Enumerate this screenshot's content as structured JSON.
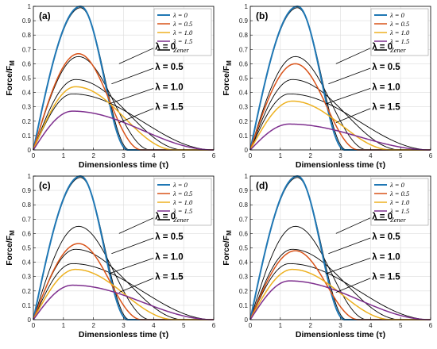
{
  "figure": {
    "xlabel": "Dimensionless time (τ)",
    "ylabel": "Force/F",
    "ylabel_sub": "M",
    "xlim": [
      0,
      6
    ],
    "ylim": [
      0,
      1
    ],
    "xticks": [
      "0",
      "1",
      "2",
      "3",
      "4",
      "5",
      "6"
    ],
    "yticks": [
      "0",
      "0.1",
      "0.2",
      "0.3",
      "0.4",
      "0.5",
      "0.6",
      "0.7",
      "0.8",
      "0.9",
      "1"
    ],
    "grid": true,
    "legend_position": "top-right"
  },
  "colors": {
    "lambda_0": "#1f77b4",
    "lambda_0_5": "#d95319",
    "lambda_1_0": "#edb120",
    "lambda_1_5": "#7e2f8e",
    "zener": "#000000"
  },
  "chart_data": [
    {
      "type": "line",
      "panel_label": "(a)",
      "xlabel": "Dimensionless time (τ)",
      "ylabel": "Force/FM",
      "xlim": [
        0,
        6
      ],
      "ylim": [
        0,
        1
      ],
      "legend": [
        "λ = 0",
        "λ = 0.5",
        "λ = 1.0",
        "λ = 1.5",
        "Zener"
      ],
      "annotations": [
        "λ = 0",
        "λ = 0.5",
        "λ = 1.0",
        "λ = 1.5"
      ],
      "series": [
        {
          "name": "λ = 0",
          "peak": 1.0,
          "peak_x": 1.57,
          "end_x": 3.14
        },
        {
          "name": "λ = 0.5",
          "peak": 0.67,
          "peak_x": 1.5,
          "end_x": 3.6
        },
        {
          "name": "λ = 1.0",
          "peak": 0.44,
          "peak_x": 1.4,
          "end_x": 4.7
        },
        {
          "name": "λ = 1.5",
          "peak": 0.27,
          "peak_x": 1.3,
          "end_x": 6.0
        },
        {
          "name": "Zener",
          "curves": [
            {
              "peak": 0.99,
              "peak_x": 1.57,
              "end_x": 3.2
            },
            {
              "peak": 0.65,
              "peak_x": 1.5,
              "end_x": 3.9
            },
            {
              "peak": 0.49,
              "peak_x": 1.4,
              "end_x": 5.0
            },
            {
              "peak": 0.39,
              "peak_x": 1.3,
              "end_x": 6.0
            }
          ]
        }
      ]
    },
    {
      "type": "line",
      "panel_label": "(b)",
      "xlabel": "Dimensionless time (τ)",
      "ylabel": "Force/FM",
      "xlim": [
        0,
        6
      ],
      "ylim": [
        0,
        1
      ],
      "legend": [
        "λ = 0",
        "λ = 0.5",
        "λ = 1.0",
        "λ = 1.5",
        "Zener"
      ],
      "annotations": [
        "λ = 0",
        "λ = 0.5",
        "λ = 1.0",
        "λ = 1.5"
      ],
      "series": [
        {
          "name": "λ = 0",
          "peak": 1.0,
          "peak_x": 1.57,
          "end_x": 3.14
        },
        {
          "name": "λ = 0.5",
          "peak": 0.6,
          "peak_x": 1.5,
          "end_x": 3.6
        },
        {
          "name": "λ = 1.0",
          "peak": 0.34,
          "peak_x": 1.4,
          "end_x": 4.7
        },
        {
          "name": "λ = 1.5",
          "peak": 0.18,
          "peak_x": 1.3,
          "end_x": 6.0
        },
        {
          "name": "Zener",
          "curves": [
            {
              "peak": 0.99,
              "peak_x": 1.57,
              "end_x": 3.2
            },
            {
              "peak": 0.65,
              "peak_x": 1.5,
              "end_x": 3.9
            },
            {
              "peak": 0.49,
              "peak_x": 1.4,
              "end_x": 5.0
            },
            {
              "peak": 0.39,
              "peak_x": 1.3,
              "end_x": 6.0
            }
          ]
        }
      ]
    },
    {
      "type": "line",
      "panel_label": "(c)",
      "xlabel": "Dimensionless time (τ)",
      "ylabel": "Force/FM",
      "xlim": [
        0,
        6
      ],
      "ylim": [
        0,
        1
      ],
      "legend": [
        "λ = 0",
        "λ = 0.5",
        "λ = 1.0",
        "λ = 1.5",
        "Zener"
      ],
      "annotations": [
        "λ = 0",
        "λ = 0.5",
        "λ = 1.0",
        "λ = 1.5"
      ],
      "series": [
        {
          "name": "λ = 0",
          "peak": 1.0,
          "peak_x": 1.57,
          "end_x": 3.14
        },
        {
          "name": "λ = 0.5",
          "peak": 0.53,
          "peak_x": 1.5,
          "end_x": 3.6
        },
        {
          "name": "λ = 1.0",
          "peak": 0.35,
          "peak_x": 1.4,
          "end_x": 4.7
        },
        {
          "name": "λ = 1.5",
          "peak": 0.24,
          "peak_x": 1.3,
          "end_x": 6.0
        },
        {
          "name": "Zener",
          "curves": [
            {
              "peak": 0.99,
              "peak_x": 1.57,
              "end_x": 3.2
            },
            {
              "peak": 0.65,
              "peak_x": 1.5,
              "end_x": 3.9
            },
            {
              "peak": 0.49,
              "peak_x": 1.4,
              "end_x": 5.0
            },
            {
              "peak": 0.39,
              "peak_x": 1.3,
              "end_x": 6.0
            }
          ]
        }
      ]
    },
    {
      "type": "line",
      "panel_label": "(d)",
      "xlabel": "Dimensionless time (τ)",
      "ylabel": "Force/FM",
      "xlim": [
        0,
        6
      ],
      "ylim": [
        0,
        1
      ],
      "legend": [
        "λ = 0",
        "λ = 0.5",
        "λ = 1.0",
        "λ = 1.5",
        "Zener"
      ],
      "annotations": [
        "λ = 0",
        "λ = 0.5",
        "λ = 1.0",
        "λ = 1.5"
      ],
      "series": [
        {
          "name": "λ = 0",
          "peak": 1.0,
          "peak_x": 1.57,
          "end_x": 3.14
        },
        {
          "name": "λ = 0.5",
          "peak": 0.48,
          "peak_x": 1.5,
          "end_x": 3.6
        },
        {
          "name": "λ = 1.0",
          "peak": 0.35,
          "peak_x": 1.4,
          "end_x": 4.7
        },
        {
          "name": "λ = 1.5",
          "peak": 0.27,
          "peak_x": 1.3,
          "end_x": 6.0
        },
        {
          "name": "Zener",
          "curves": [
            {
              "peak": 0.99,
              "peak_x": 1.57,
              "end_x": 3.2
            },
            {
              "peak": 0.65,
              "peak_x": 1.5,
              "end_x": 3.9
            },
            {
              "peak": 0.49,
              "peak_x": 1.4,
              "end_x": 5.0
            },
            {
              "peak": 0.39,
              "peak_x": 1.3,
              "end_x": 6.0
            }
          ]
        }
      ]
    }
  ]
}
